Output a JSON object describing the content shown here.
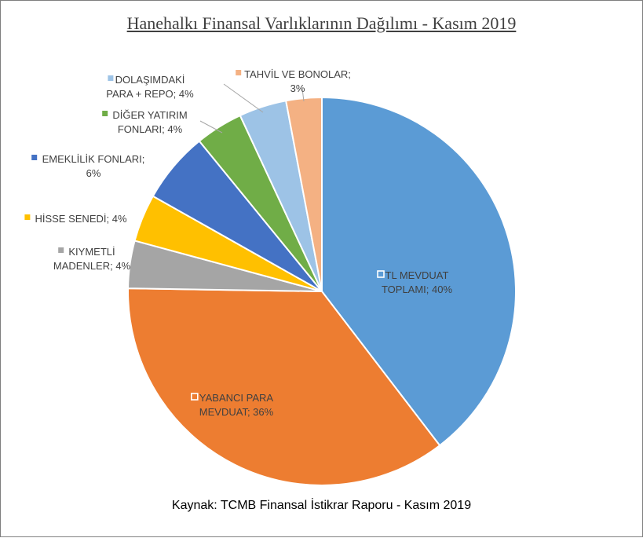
{
  "chart_data": {
    "type": "pie",
    "title": "Hanehalkı Finansal Varlıklarının Dağılımı - Kasım 2019",
    "source": "Kaynak: TCMB Finansal İstikrar Raporu - Kasım 2019",
    "legend": "none",
    "slices": [
      {
        "name": "TL MEVDUAT TOPLAMI",
        "value": 40,
        "label": "TL MEVDUAT TOPLAMI; 40%",
        "label_lines": [
          "TL MEVDUAT",
          "TOPLAMI; 40%"
        ],
        "color": "#5B9BD5"
      },
      {
        "name": "YABANCI PARA MEVDUAT",
        "value": 36,
        "label": "YABANCI PARA MEVDUAT; 36%",
        "label_lines": [
          "YABANCI PARA",
          "MEVDUAT; 36%"
        ],
        "color": "#ED7D31"
      },
      {
        "name": "KIYMETLİ MADENLER",
        "value": 4,
        "label": "KIYMETLİ MADENLER; 4%",
        "label_lines": [
          "KIYMETLİ",
          "MADENLER; 4%"
        ],
        "color": "#A5A5A5"
      },
      {
        "name": "HİSSE SENEDİ",
        "value": 4,
        "label": "HİSSE SENEDİ; 4%",
        "label_lines": [
          "HİSSE SENEDİ; 4%"
        ],
        "color": "#FFC000"
      },
      {
        "name": "EMEKLİLİK FONLARI",
        "value": 6,
        "label": "EMEKLİLİK FONLARI; 6%",
        "label_lines": [
          "EMEKLİLİK FONLARI;",
          "6%"
        ],
        "color": "#4472C4"
      },
      {
        "name": "DİĞER YATIRIM FONLARI",
        "value": 4,
        "label": "DİĞER YATIRIM FONLARI; 4%",
        "label_lines": [
          "DİĞER YATIRIM",
          "FONLARI; 4%"
        ],
        "color": "#70AD47"
      },
      {
        "name": "DOLAŞIMDAKİ PARA + REPO",
        "value": 4,
        "label": "DOLAŞIMDAKİ PARA + REPO; 4%",
        "label_lines": [
          "DOLAŞIMDAKİ",
          "PARA + REPO; 4%"
        ],
        "color": "#9DC3E6"
      },
      {
        "name": "TAHVİL VE BONOLAR",
        "value": 3,
        "label": "TAHVİL VE BONOLAR; 3%",
        "label_lines": [
          "TAHVİL VE BONOLAR;",
          "3%"
        ],
        "color": "#F4B183"
      }
    ]
  }
}
